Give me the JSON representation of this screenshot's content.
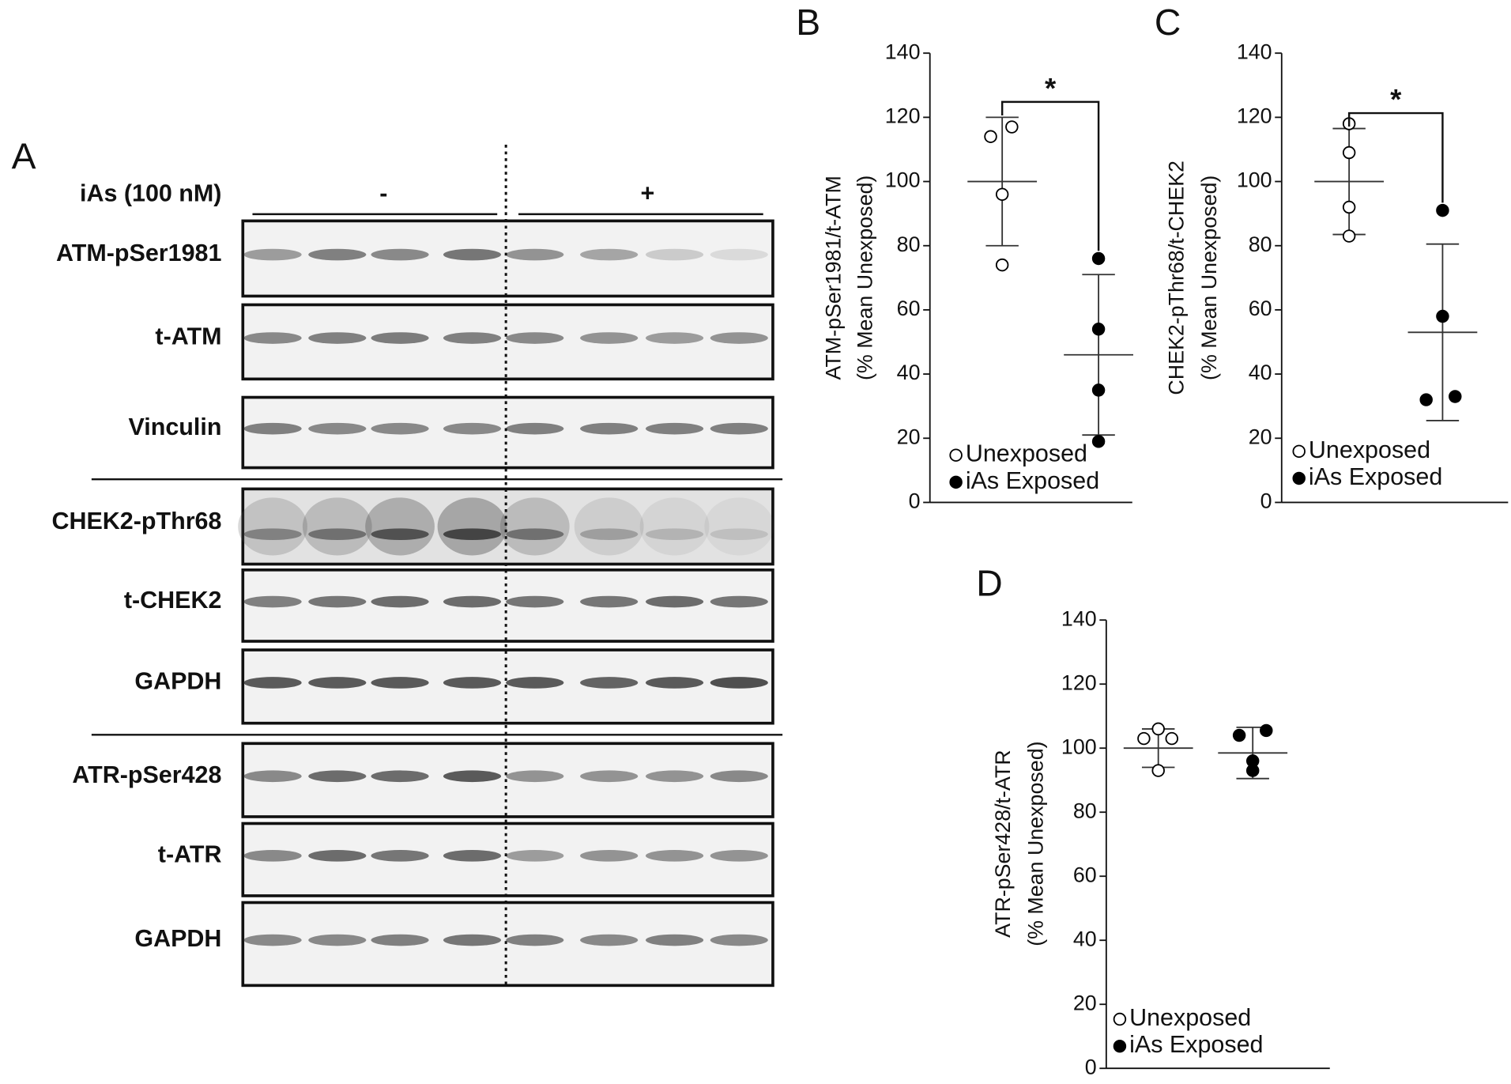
{
  "blot": {
    "panel_label": "A",
    "treatment_label": "iAs (100 nM)",
    "groups": [
      "-",
      "+"
    ],
    "rows": [
      "ATM-pSer1981",
      "t-ATM",
      "Vinculin",
      "CHEK2-pThr68",
      "t-CHEK2",
      "GAPDH",
      "ATR-pSer428",
      "t-ATR",
      "GAPDH"
    ]
  },
  "chart_data": [
    {
      "type": "scatter",
      "panel_label": "B",
      "ylabel": [
        "ATM-pSer1981/t-ATM",
        "(% Mean  Unexposed)"
      ],
      "ylim": [
        0,
        140
      ],
      "yticks": [
        0,
        20,
        40,
        60,
        80,
        100,
        120,
        140
      ],
      "annotations": [
        "*"
      ],
      "series": [
        {
          "name": "Unexposed",
          "color": "#000000",
          "filled": false,
          "values": [
            114,
            117,
            96,
            74
          ],
          "mean": 100,
          "sd": 20
        },
        {
          "name": "iAs Exposed",
          "color": "#000000",
          "filled": true,
          "values": [
            76,
            54,
            35,
            19
          ],
          "mean": 46,
          "sd": 25
        }
      ]
    },
    {
      "type": "scatter",
      "panel_label": "C",
      "ylabel": [
        "CHEK2-pThr68/t-CHEK2",
        "(% Mean Unexposed)"
      ],
      "ylim": [
        0,
        140
      ],
      "yticks": [
        0,
        20,
        40,
        60,
        80,
        100,
        120,
        140
      ],
      "annotations": [
        "*"
      ],
      "series": [
        {
          "name": "Unexposed",
          "color": "#000000",
          "filled": false,
          "values": [
            118,
            109,
            92,
            83
          ],
          "mean": 100,
          "sd": 16.5
        },
        {
          "name": "iAs Exposed",
          "color": "#000000",
          "filled": true,
          "values": [
            91,
            58,
            32,
            33
          ],
          "mean": 53,
          "sd": 27.5
        }
      ]
    },
    {
      "type": "scatter",
      "panel_label": "D",
      "ylabel": [
        "ATR-pSer428/t-ATR",
        "(% Mean Unexposed)"
      ],
      "ylim": [
        0,
        140
      ],
      "yticks": [
        0,
        20,
        40,
        60,
        80,
        100,
        120,
        140
      ],
      "series": [
        {
          "name": "Unexposed",
          "color": "#000000",
          "filled": false,
          "values": [
            106,
            103,
            103,
            93
          ],
          "mean": 100,
          "sd": 6
        },
        {
          "name": "iAs Exposed",
          "color": "#000000",
          "filled": true,
          "values": [
            104,
            105.5,
            96,
            93
          ],
          "mean": 98.5,
          "sd": 8
        }
      ]
    }
  ]
}
